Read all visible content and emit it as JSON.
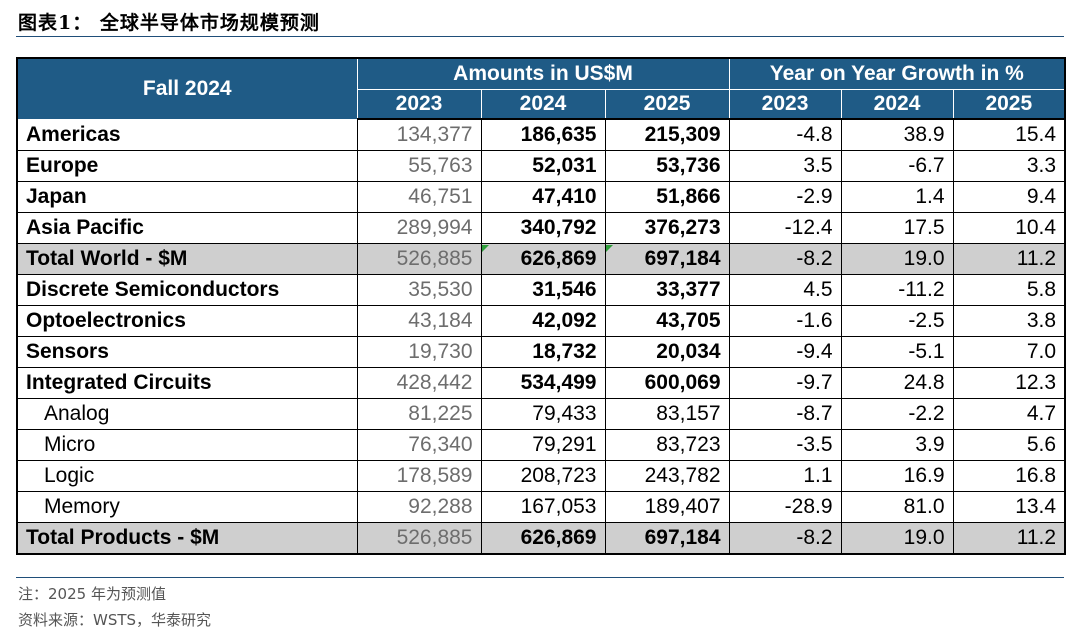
{
  "figure_title": "图表1：  全球半导体市场规模预测",
  "table": {
    "corner_label": "Fall 2024",
    "group_amounts": "Amounts in US$M",
    "group_growth": "Year on Year Growth in %",
    "years": [
      "2023",
      "2024",
      "2025",
      "2023",
      "2024",
      "2025"
    ],
    "rows": [
      {
        "label": "Americas",
        "v2023": "134,377",
        "v2024": "186,635",
        "v2025": "215,309",
        "g2023": "-4.8",
        "g2024": "38.9",
        "g2025": "15.4"
      },
      {
        "label": "Europe",
        "v2023": "55,763",
        "v2024": "52,031",
        "v2025": "53,736",
        "g2023": "3.5",
        "g2024": "-6.7",
        "g2025": "3.3"
      },
      {
        "label": "Japan",
        "v2023": "46,751",
        "v2024": "47,410",
        "v2025": "51,866",
        "g2023": "-2.9",
        "g2024": "1.4",
        "g2025": "9.4"
      },
      {
        "label": "Asia Pacific",
        "v2023": "289,994",
        "v2024": "340,792",
        "v2025": "376,273",
        "g2023": "-12.4",
        "g2024": "17.5",
        "g2025": "10.4"
      },
      {
        "label": "Total World - $M",
        "v2023": "526,885",
        "v2024": "626,869",
        "v2025": "697,184",
        "g2023": "-8.2",
        "g2024": "19.0",
        "g2025": "11.2"
      },
      {
        "label": "Discrete Semiconductors",
        "v2023": "35,530",
        "v2024": "31,546",
        "v2025": "33,377",
        "g2023": "4.5",
        "g2024": "-11.2",
        "g2025": "5.8"
      },
      {
        "label": "Optoelectronics",
        "v2023": "43,184",
        "v2024": "42,092",
        "v2025": "43,705",
        "g2023": "-1.6",
        "g2024": "-2.5",
        "g2025": "3.8"
      },
      {
        "label": "Sensors",
        "v2023": "19,730",
        "v2024": "18,732",
        "v2025": "20,034",
        "g2023": "-9.4",
        "g2024": "-5.1",
        "g2025": "7.0"
      },
      {
        "label": "Integrated Circuits",
        "v2023": "428,442",
        "v2024": "534,499",
        "v2025": "600,069",
        "g2023": "-9.7",
        "g2024": "24.8",
        "g2025": "12.3"
      },
      {
        "label": "Analog",
        "v2023": "81,225",
        "v2024": "79,433",
        "v2025": "83,157",
        "g2023": "-8.7",
        "g2024": "-2.2",
        "g2025": "4.7"
      },
      {
        "label": "Micro",
        "v2023": "76,340",
        "v2024": "79,291",
        "v2025": "83,723",
        "g2023": "-3.5",
        "g2024": "3.9",
        "g2025": "5.6"
      },
      {
        "label": "Logic",
        "v2023": "178,589",
        "v2024": "208,723",
        "v2025": "243,782",
        "g2023": "1.1",
        "g2024": "16.9",
        "g2025": "16.8"
      },
      {
        "label": "Memory",
        "v2023": "92,288",
        "v2024": "167,053",
        "v2025": "189,407",
        "g2023": "-28.9",
        "g2024": "81.0",
        "g2025": "13.4"
      },
      {
        "label": "Total Products - $M",
        "v2023": "526,885",
        "v2024": "626,869",
        "v2025": "697,184",
        "g2023": "-8.2",
        "g2024": "19.0",
        "g2025": "11.2"
      }
    ]
  },
  "note": "注：2025 年为预测值",
  "source": "资料来源：WSTS，华泰研究",
  "colors": {
    "header_bg": "#1f5b86",
    "total_bg": "#cfcfcf",
    "rule": "#1f4e79"
  }
}
